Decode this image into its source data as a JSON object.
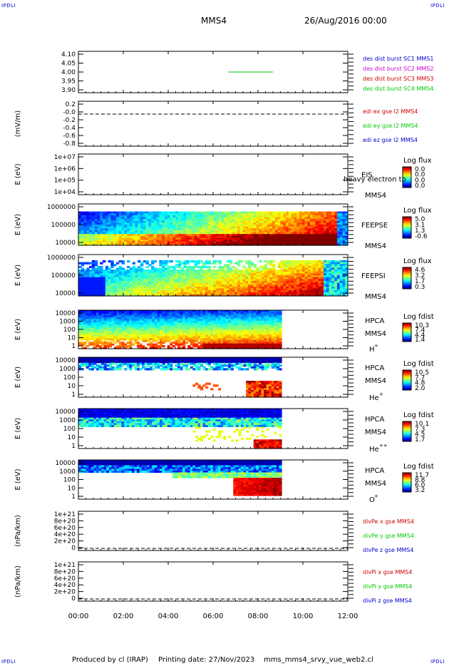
{
  "corners": {
    "left": "IPDLI",
    "right": "IPDLI"
  },
  "header": {
    "spacecraft": "MMS4",
    "date": "26/Aug/2016 00:00"
  },
  "footer": {
    "produced_by": "Produced by cl (IRAP)",
    "printing_date": "Printing date: 27/Nov/2023",
    "script_name": "mms_mms4_srvy_vue_web2.cl"
  },
  "chart_data": [
    {
      "id": "panel1",
      "type": "line",
      "ylabel": "",
      "ylim": [
        3.9,
        4.1
      ],
      "yticks": [
        "4.10",
        "4.05",
        "4.00",
        "3.95",
        "3.90"
      ],
      "series": [
        {
          "name": "des dist burst SC1 MMS1",
          "color": "#0000cc",
          "x": [],
          "y": []
        },
        {
          "name": "des dist burst SC2 MMS2",
          "color": "#cc00cc",
          "x": [],
          "y": []
        },
        {
          "name": "des dist burst SC3 MMS3",
          "color": "#cc0000",
          "x": [],
          "y": []
        },
        {
          "name": "des dist burst SC4 MMS4",
          "color": "#00cc00",
          "x": [
            "06:40",
            "08:40"
          ],
          "y": [
            4.0,
            4.0
          ]
        }
      ]
    },
    {
      "id": "panel2",
      "type": "line",
      "ylabel": "(mV/m)",
      "ylim": [
        -0.9,
        0.35
      ],
      "yticks": [
        "0.2",
        "-0.0",
        "-0.2",
        "-0.4",
        "-0.6",
        "-0.8"
      ],
      "zero_line": true,
      "series": [
        {
          "name": "edi ex gse l2 MMS4",
          "color": "#cc0000"
        },
        {
          "name": "edi ey gse l2 MMS4",
          "color": "#00cc00"
        },
        {
          "name": "edi ez gse l2 MMS4",
          "color": "#0000cc"
        }
      ]
    },
    {
      "id": "panel3",
      "type": "heatmap",
      "ylabel": "E (eV)",
      "yticks": [
        "1e+07",
        "1e+06",
        "1e+05",
        "1e+04"
      ],
      "instrument": "EIS",
      "species_overlay": "heavy electron to",
      "sc": "MMS4",
      "colorbar": {
        "title": "Log flux",
        "ticks": [
          "0.0",
          "0.0",
          "0.0",
          "0.0"
        ]
      }
    },
    {
      "id": "panel4",
      "type": "heatmap",
      "ylabel": "E (eV)",
      "yticks": [
        "1000000",
        "100000",
        "10000"
      ],
      "instrument": "FEEPSE",
      "sc": "MMS4",
      "colorbar": {
        "title": "Log flux",
        "ticks": [
          "5.0",
          "3.1",
          "1.3",
          "-0.6"
        ]
      }
    },
    {
      "id": "panel5",
      "type": "heatmap",
      "ylabel": "E (eV)",
      "yticks": [
        "1000000",
        "100000",
        "10000"
      ],
      "instrument": "FEEPSI",
      "sc": "MMS4",
      "colorbar": {
        "title": "Log flux",
        "ticks": [
          "4.6",
          "3.2",
          "1.7",
          "0.3"
        ]
      }
    },
    {
      "id": "panel6",
      "type": "heatmap",
      "ylabel": "E (eV)",
      "yticks": [
        "10000",
        "1000",
        "100",
        "10",
        "1"
      ],
      "instrument": "HPCA",
      "sc": "MMS4",
      "species": "H",
      "species_sup": "+",
      "colorbar": {
        "title": "Log fdist",
        "ticks": [
          "10.3",
          "7.4",
          "4.4",
          "1.4"
        ]
      }
    },
    {
      "id": "panel7",
      "type": "heatmap",
      "ylabel": "E (eV)",
      "yticks": [
        "10000",
        "1000",
        "100",
        "10",
        "1"
      ],
      "instrument": "HPCA",
      "sc": "MMS4",
      "species": "He",
      "species_sup": "+",
      "colorbar": {
        "title": "Log fdist",
        "ticks": [
          "10.5",
          "7.7",
          "4.8",
          "2.0"
        ]
      }
    },
    {
      "id": "panel8",
      "type": "heatmap",
      "ylabel": "E (eV)",
      "yticks": [
        "10000",
        "1000",
        "100",
        "10",
        "1"
      ],
      "instrument": "HPCA",
      "sc": "MMS4",
      "species": "He",
      "species_sup": "++",
      "colorbar": {
        "title": "Log fdist",
        "ticks": [
          "10.1",
          "7.3",
          "4.5",
          "1.7"
        ]
      }
    },
    {
      "id": "panel9",
      "type": "heatmap",
      "ylabel": "E (eV)",
      "yticks": [
        "10000",
        "1000",
        "100",
        "10",
        "1"
      ],
      "instrument": "HPCA",
      "sc": "MMS4",
      "species": "O",
      "species_sup": "+",
      "colorbar": {
        "title": "Log fdist",
        "ticks": [
          "11.7",
          "8.8",
          "6.0",
          "3.2"
        ]
      }
    },
    {
      "id": "panel10",
      "type": "line",
      "ylabel": "(nPa/km)",
      "yticks": [
        "1e+21",
        "8e+20",
        "6e+20",
        "4e+20",
        "2e+20",
        "0"
      ],
      "zero_line": true,
      "series": [
        {
          "name": "divPe x gse MMS4",
          "color": "#cc0000"
        },
        {
          "name": "divPe y gse MMS4",
          "color": "#00cc00"
        },
        {
          "name": "divPe z gse MMS4",
          "color": "#0000cc"
        }
      ]
    },
    {
      "id": "panel11",
      "type": "line",
      "ylabel": "(nPa/km)",
      "yticks": [
        "1e+21",
        "8e+20",
        "6e+20",
        "4e+20",
        "2e+20",
        "0"
      ],
      "zero_line": true,
      "series": [
        {
          "name": "divPi x gse MMS4",
          "color": "#cc0000"
        },
        {
          "name": "divPi y gse MMS4",
          "color": "#00cc00"
        },
        {
          "name": "divPi z gse MMS4",
          "color": "#0000cc"
        }
      ]
    }
  ],
  "x_axis": {
    "ticks": [
      "00:00",
      "02:00",
      "04:00",
      "06:00",
      "08:00",
      "10:00",
      "12:00"
    ]
  }
}
